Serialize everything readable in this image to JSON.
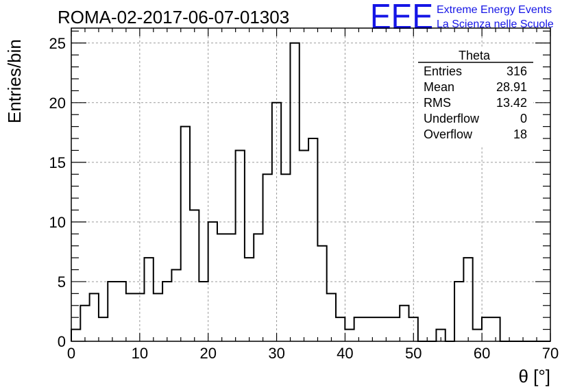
{
  "header": {
    "title": "ROMA-02-2017-06-07-01303",
    "logo_text": "EEE",
    "logo_line1": "Extreme Energy Events",
    "logo_line2": "La Scienza nelle Scuole"
  },
  "stats": {
    "title": "Theta",
    "rows": [
      {
        "label": "Entries",
        "value": "316"
      },
      {
        "label": "Mean",
        "value": "28.91"
      },
      {
        "label": "RMS",
        "value": "13.42"
      },
      {
        "label": "Underflow",
        "value": "0"
      },
      {
        "label": "Overflow",
        "value": "18"
      }
    ]
  },
  "colors": {
    "logo": "#1515e6",
    "line": "#000000",
    "grid": "#9a9a9a"
  },
  "chart_data": {
    "type": "histogram",
    "xlabel": "θ [°]",
    "ylabel": "Entries/bin",
    "xlim": [
      0,
      70
    ],
    "ylim": [
      0,
      26.25
    ],
    "bin_width": 1.333,
    "xticks": [
      0,
      10,
      20,
      30,
      40,
      50,
      60,
      70
    ],
    "yticks": [
      0,
      5,
      10,
      15,
      20,
      25
    ],
    "grid": true,
    "values": [
      1,
      3,
      4,
      2,
      5,
      5,
      4,
      4,
      7,
      4,
      5,
      6,
      18,
      11,
      5,
      10,
      9,
      9,
      16,
      7,
      9,
      14,
      20,
      14,
      25,
      16,
      17,
      8,
      4,
      2,
      1,
      2,
      2,
      2,
      2,
      2,
      3,
      2,
      0,
      0,
      1,
      0,
      5,
      7,
      1,
      2,
      2,
      0,
      0,
      0,
      0,
      0
    ]
  }
}
